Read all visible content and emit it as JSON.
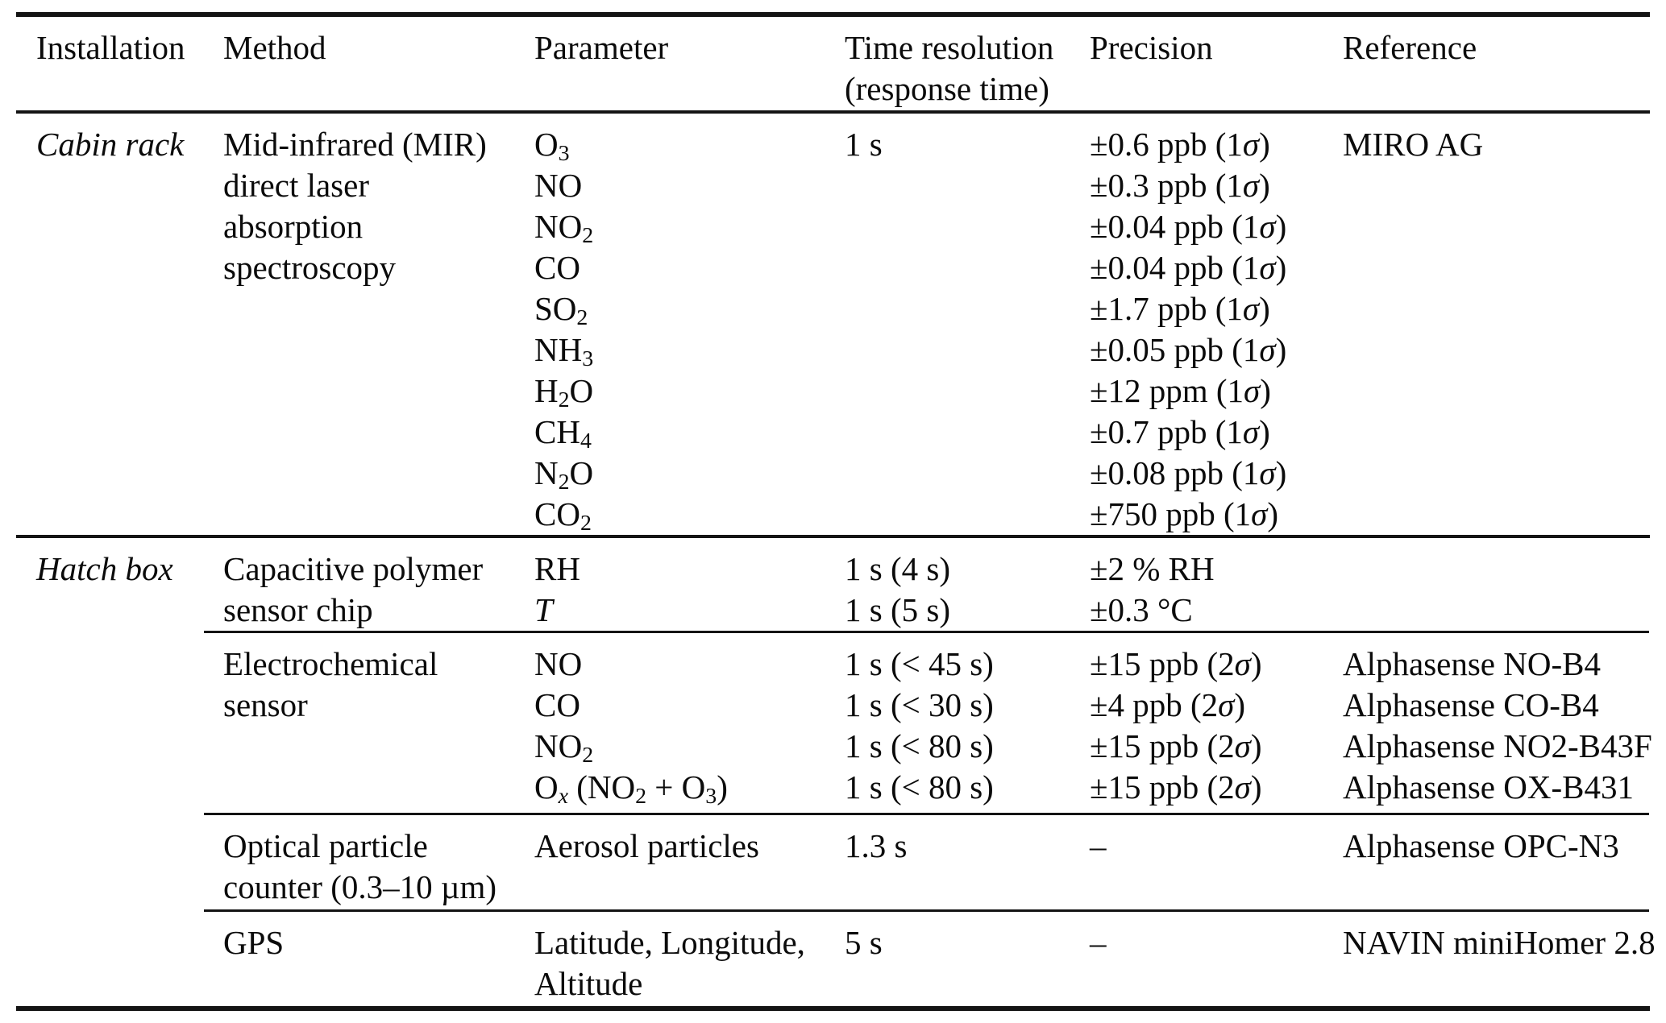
{
  "columns": [
    [
      "Installation"
    ],
    [
      "Method"
    ],
    [
      "Parameter"
    ],
    [
      "Time resolution",
      "(response time)"
    ],
    [
      "Precision"
    ],
    [
      "Reference"
    ]
  ],
  "sections": [
    {
      "installation": "Cabin rack",
      "rows": [
        {
          "method": [
            "Mid-infrared (MIR)",
            "direct laser",
            "absorption",
            "spectroscopy"
          ],
          "parameters": [
            "O_{3}",
            "NO",
            "NO_{2}",
            "CO",
            "SO_{2}",
            "NH_{3}",
            "H_{2}O",
            "CH_{4}",
            "N_{2}O",
            "CO_{2}"
          ],
          "time_resolution": [
            "1 s"
          ],
          "precision": [
            "±0.6 ppb (1*σ*)",
            "±0.3 ppb (1*σ*)",
            "±0.04 ppb (1*σ*)",
            "±0.04 ppb (1*σ*)",
            "±1.7 ppb (1*σ*)",
            "±0.05 ppb (1*σ*)",
            "±12 ppm (1*σ*)",
            "±0.7 ppb (1*σ*)",
            "±0.08 ppb (1*σ*)",
            "±750 ppb (1*σ*)"
          ],
          "reference": [
            "MIRO AG"
          ]
        }
      ]
    },
    {
      "installation": "Hatch box",
      "rows": [
        {
          "method": [
            "Capacitive polymer",
            "sensor chip"
          ],
          "parameters": [
            "RH",
            "*T*"
          ],
          "time_resolution": [
            "1 s (4 s)",
            "1 s (5 s)"
          ],
          "precision": [
            "±2 % RH",
            "±0.3 °C"
          ],
          "reference": []
        },
        {
          "method": [
            "Electrochemical",
            "sensor"
          ],
          "parameters": [
            "NO",
            "CO",
            "NO_{2}",
            "O_{*x*} (NO_{2} + O_{3})"
          ],
          "time_resolution": [
            "1 s (< 45 s)",
            "1 s (< 30 s)",
            "1 s (< 80 s)",
            "1 s (< 80 s)"
          ],
          "precision": [
            "±15 ppb (2*σ*)",
            "±4 ppb (2*σ*)",
            "±15 ppb (2*σ*)",
            "±15 ppb (2*σ*)"
          ],
          "reference": [
            "Alphasense NO-B4",
            "Alphasense CO-B4",
            "Alphasense NO2-B43F",
            "Alphasense OX-B431"
          ]
        },
        {
          "method": [
            "Optical particle",
            "counter (0.3–10 µm)"
          ],
          "parameters": [
            "Aerosol particles"
          ],
          "time_resolution": [
            "1.3 s"
          ],
          "precision": [
            "–"
          ],
          "reference": [
            "Alphasense OPC-N3"
          ]
        },
        {
          "method": [
            "GPS"
          ],
          "parameters": [
            "Latitude, Longitude,",
            "Altitude"
          ],
          "time_resolution": [
            "5 s"
          ],
          "precision": [
            "–"
          ],
          "reference": [
            "NAVIN miniHomer 2.8"
          ]
        }
      ]
    }
  ]
}
